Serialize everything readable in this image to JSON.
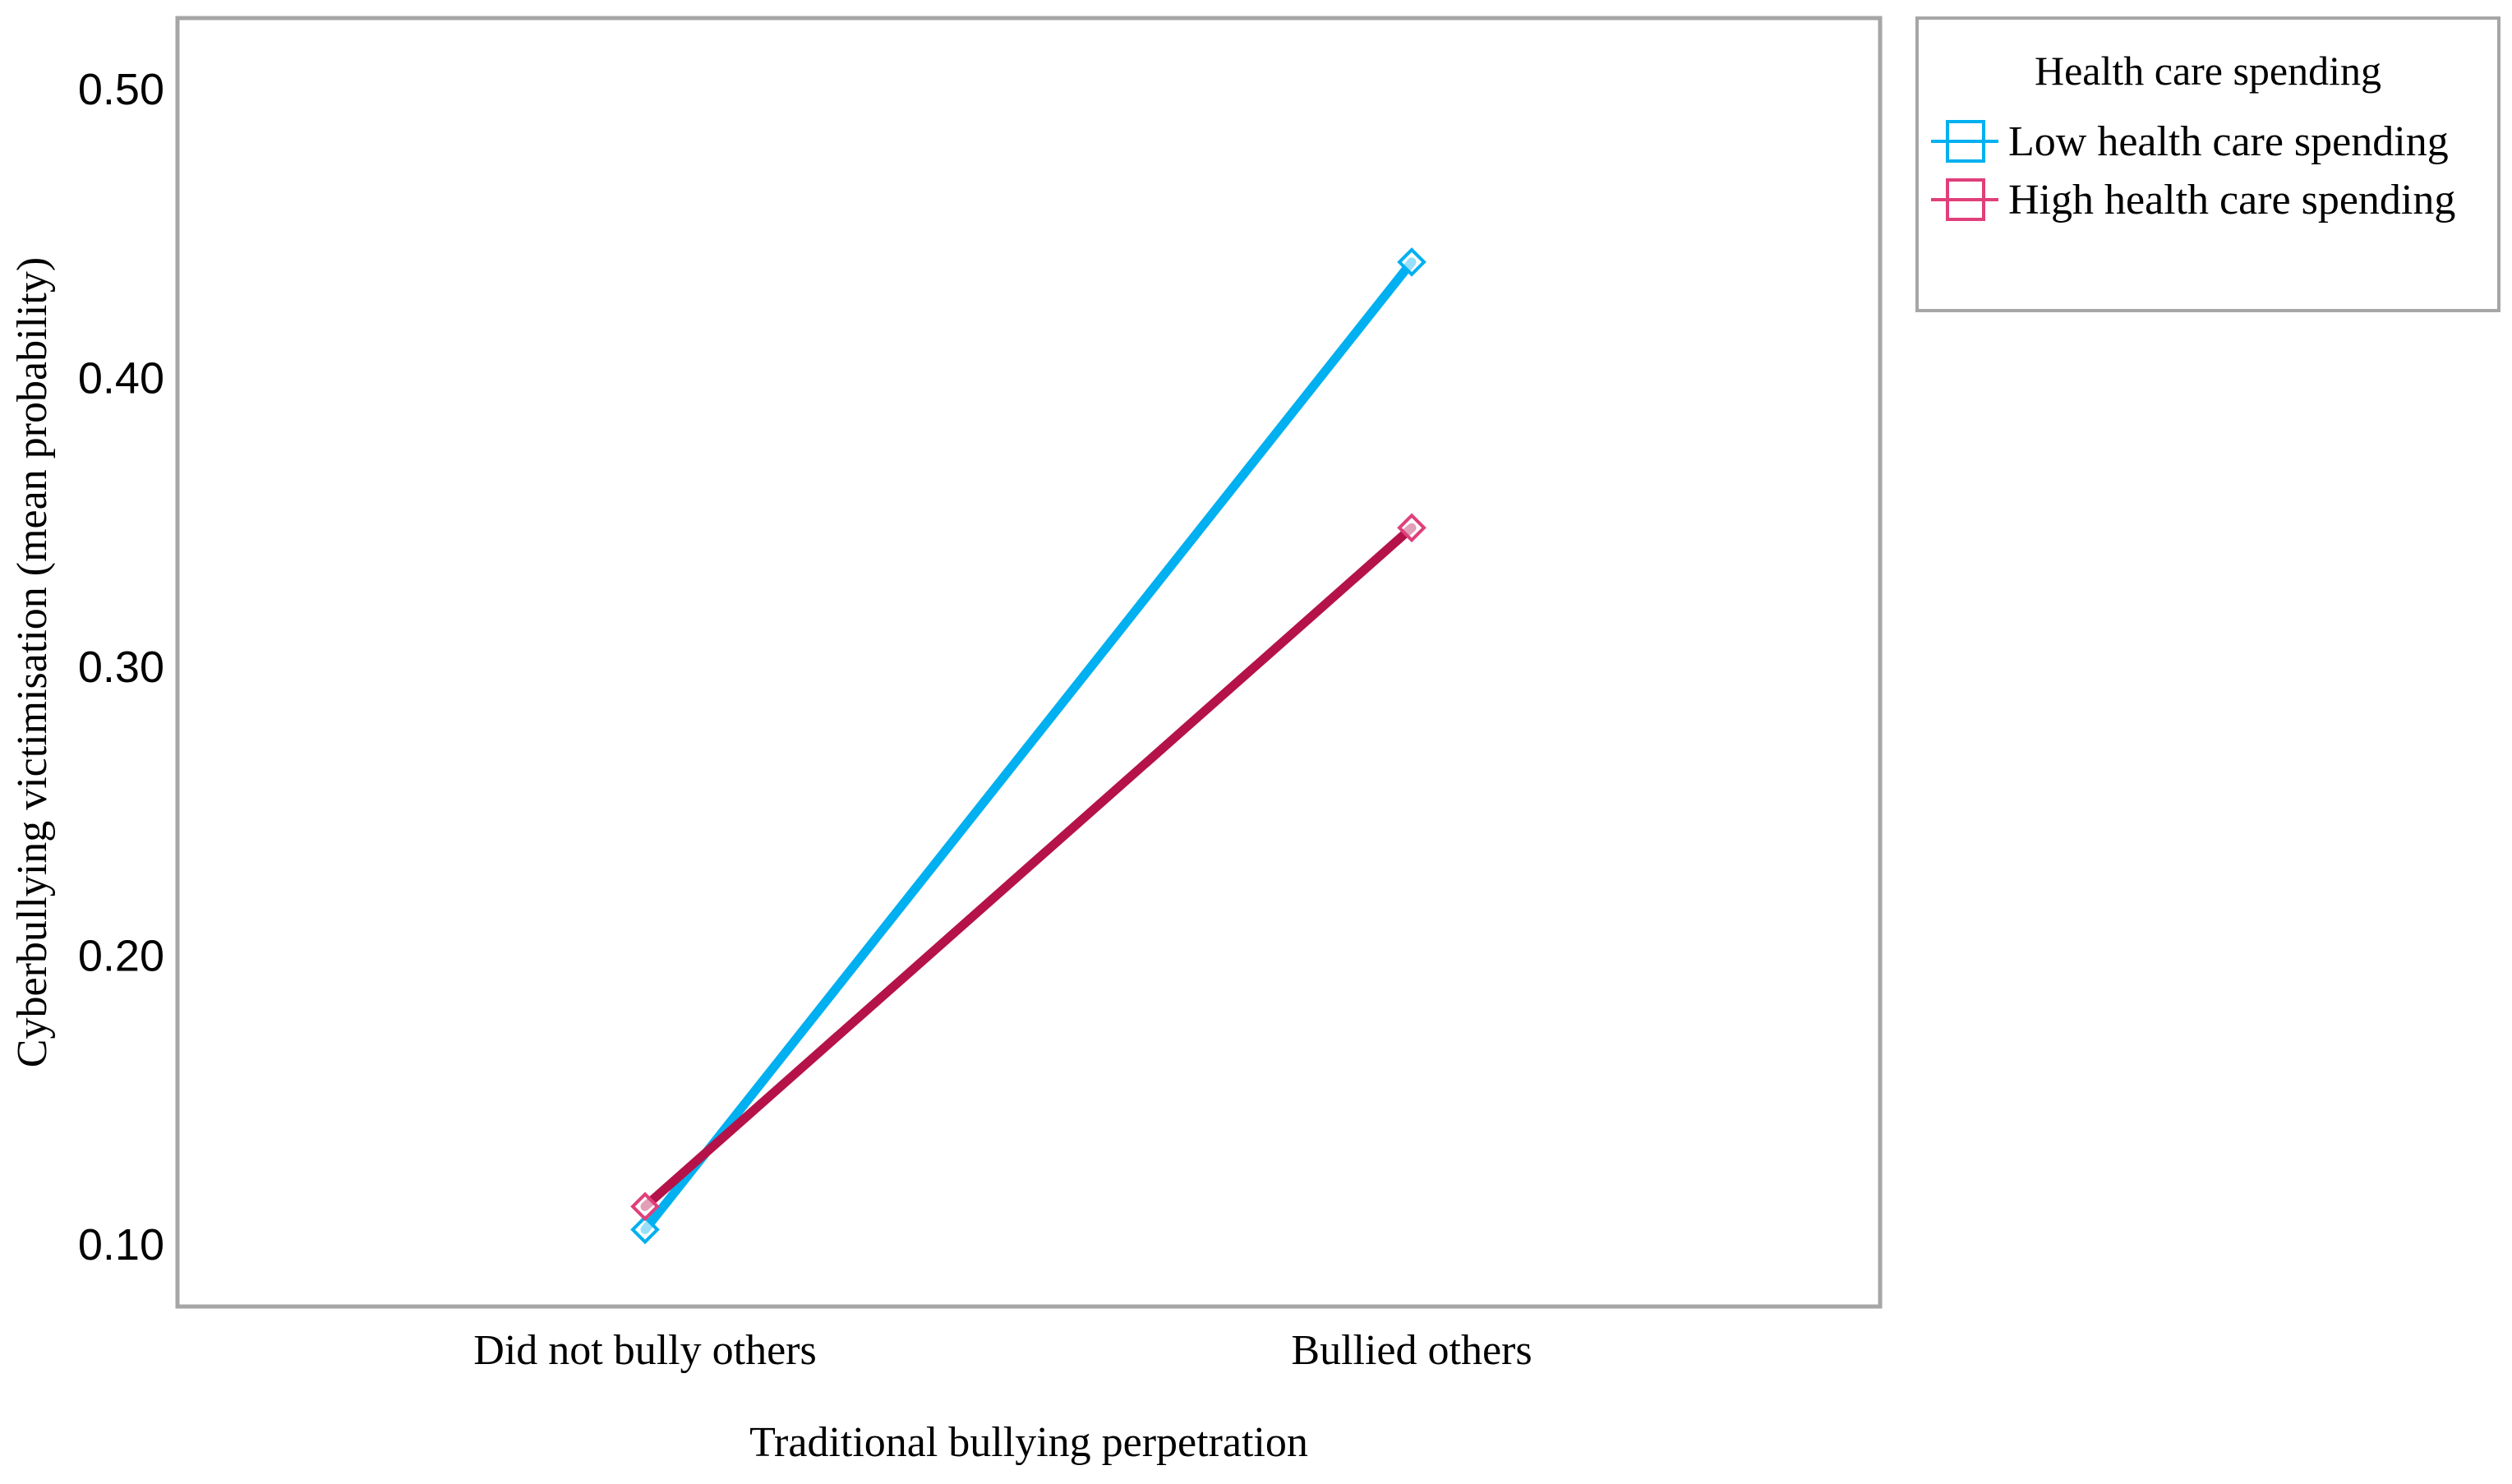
{
  "chart_data": {
    "type": "line",
    "title": "",
    "xlabel": "Traditional bullying perpetration",
    "ylabel": "Cyberbullying victimisation (mean probability)",
    "categories": [
      "Did not bully others",
      "Bullied others"
    ],
    "ylim": [
      0.08,
      0.52
    ],
    "yticks": [
      0.1,
      0.2,
      0.3,
      0.4,
      0.5
    ],
    "ytick_labels": [
      "0.10",
      "0.20",
      "0.30",
      "0.40",
      "0.50"
    ],
    "grid": false,
    "legend": {
      "title": "Health care spending",
      "placement": "right, outside plot (top)"
    },
    "series": [
      {
        "name": "Low health care spending",
        "values": [
          0.105,
          0.44
        ],
        "color": "#00b0f0",
        "marker": "diamond"
      },
      {
        "name": "High health care spending",
        "values": [
          0.113,
          0.348
        ],
        "color": "#b5124a",
        "marker": "diamond",
        "marker_color": "#e0407a"
      }
    ]
  }
}
